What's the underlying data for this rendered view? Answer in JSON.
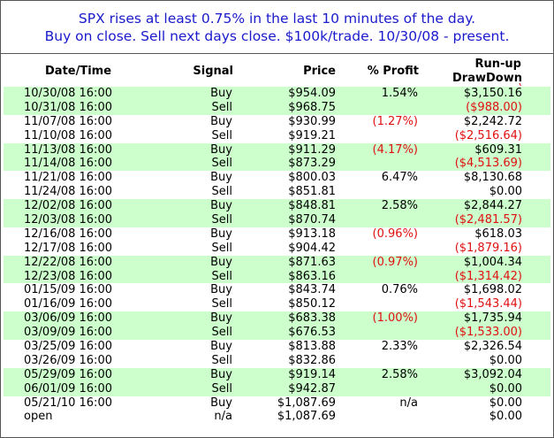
{
  "banner": {
    "line1": "SPX rises at least 0.75% in the last 10 minutes of the day.",
    "line2": "Buy on close. Sell next days close. $100k/trade. 10/30/08 - present."
  },
  "columns": {
    "date": "Date/Time",
    "signal": "Signal",
    "price": "Price",
    "profit": "% Profit",
    "runup": "Run-up",
    "drawdown": "DrawDown"
  },
  "colors": {
    "shade": "#ccffcc",
    "negative": "#e01010",
    "banner_text": "#1a1acc"
  },
  "rows": [
    {
      "date": "10/30/08 16:00",
      "signal": "Buy",
      "price": "$954.09",
      "profit": "1.54%",
      "profit_neg": false,
      "run": "$3,150.16",
      "run_neg": false,
      "shade": true
    },
    {
      "date": "10/31/08 16:00",
      "signal": "Sell",
      "price": "$968.75",
      "profit": "",
      "profit_neg": false,
      "run": "($988.00)",
      "run_neg": true,
      "shade": true
    },
    {
      "date": "11/07/08 16:00",
      "signal": "Buy",
      "price": "$930.99",
      "profit": "(1.27%)",
      "profit_neg": true,
      "run": "$2,242.72",
      "run_neg": false,
      "shade": false
    },
    {
      "date": "11/10/08 16:00",
      "signal": "Sell",
      "price": "$919.21",
      "profit": "",
      "profit_neg": false,
      "run": "($2,516.64)",
      "run_neg": true,
      "shade": false
    },
    {
      "date": "11/13/08 16:00",
      "signal": "Buy",
      "price": "$911.29",
      "profit": "(4.17%)",
      "profit_neg": true,
      "run": "$609.31",
      "run_neg": false,
      "shade": true
    },
    {
      "date": "11/14/08 16:00",
      "signal": "Sell",
      "price": "$873.29",
      "profit": "",
      "profit_neg": false,
      "run": "($4,513.69)",
      "run_neg": true,
      "shade": true
    },
    {
      "date": "11/21/08 16:00",
      "signal": "Buy",
      "price": "$800.03",
      "profit": "6.47%",
      "profit_neg": false,
      "run": "$8,130.68",
      "run_neg": false,
      "shade": false
    },
    {
      "date": "11/24/08 16:00",
      "signal": "Sell",
      "price": "$851.81",
      "profit": "",
      "profit_neg": false,
      "run": "$0.00",
      "run_neg": false,
      "shade": false
    },
    {
      "date": "12/02/08 16:00",
      "signal": "Buy",
      "price": "$848.81",
      "profit": "2.58%",
      "profit_neg": false,
      "run": "$2,844.27",
      "run_neg": false,
      "shade": true
    },
    {
      "date": "12/03/08 16:00",
      "signal": "Sell",
      "price": "$870.74",
      "profit": "",
      "profit_neg": false,
      "run": "($2,481.57)",
      "run_neg": true,
      "shade": true
    },
    {
      "date": "12/16/08 16:00",
      "signal": "Buy",
      "price": "$913.18",
      "profit": "(0.96%)",
      "profit_neg": true,
      "run": "$618.03",
      "run_neg": false,
      "shade": false
    },
    {
      "date": "12/17/08 16:00",
      "signal": "Sell",
      "price": "$904.42",
      "profit": "",
      "profit_neg": false,
      "run": "($1,879.16)",
      "run_neg": true,
      "shade": false
    },
    {
      "date": "12/22/08 16:00",
      "signal": "Buy",
      "price": "$871.63",
      "profit": "(0.97%)",
      "profit_neg": true,
      "run": "$1,004.34",
      "run_neg": false,
      "shade": true
    },
    {
      "date": "12/23/08 16:00",
      "signal": "Sell",
      "price": "$863.16",
      "profit": "",
      "profit_neg": false,
      "run": "($1,314.42)",
      "run_neg": true,
      "shade": true
    },
    {
      "date": "01/15/09 16:00",
      "signal": "Buy",
      "price": "$843.74",
      "profit": "0.76%",
      "profit_neg": false,
      "run": "$1,698.02",
      "run_neg": false,
      "shade": false
    },
    {
      "date": "01/16/09 16:00",
      "signal": "Sell",
      "price": "$850.12",
      "profit": "",
      "profit_neg": false,
      "run": "($1,543.44)",
      "run_neg": true,
      "shade": false
    },
    {
      "date": "03/06/09 16:00",
      "signal": "Buy",
      "price": "$683.38",
      "profit": "(1.00%)",
      "profit_neg": true,
      "run": "$1,735.94",
      "run_neg": false,
      "shade": true
    },
    {
      "date": "03/09/09 16:00",
      "signal": "Sell",
      "price": "$676.53",
      "profit": "",
      "profit_neg": false,
      "run": "($1,533.00)",
      "run_neg": true,
      "shade": true
    },
    {
      "date": "03/25/09 16:00",
      "signal": "Buy",
      "price": "$813.88",
      "profit": "2.33%",
      "profit_neg": false,
      "run": "$2,326.54",
      "run_neg": false,
      "shade": false
    },
    {
      "date": "03/26/09 16:00",
      "signal": "Sell",
      "price": "$832.86",
      "profit": "",
      "profit_neg": false,
      "run": "$0.00",
      "run_neg": false,
      "shade": false
    },
    {
      "date": "05/29/09 16:00",
      "signal": "Buy",
      "price": "$919.14",
      "profit": "2.58%",
      "profit_neg": false,
      "run": "$3,092.04",
      "run_neg": false,
      "shade": true
    },
    {
      "date": "06/01/09 16:00",
      "signal": "Sell",
      "price": "$942.87",
      "profit": "",
      "profit_neg": false,
      "run": "$0.00",
      "run_neg": false,
      "shade": true
    },
    {
      "date": "05/21/10 16:00",
      "signal": "Buy",
      "price": "$1,087.69",
      "profit": "n/a",
      "profit_neg": false,
      "run": "$0.00",
      "run_neg": false,
      "shade": false
    },
    {
      "date": "open",
      "signal": "n/a",
      "price": "$1,087.69",
      "profit": "",
      "profit_neg": false,
      "run": "$0.00",
      "run_neg": false,
      "shade": false
    }
  ]
}
